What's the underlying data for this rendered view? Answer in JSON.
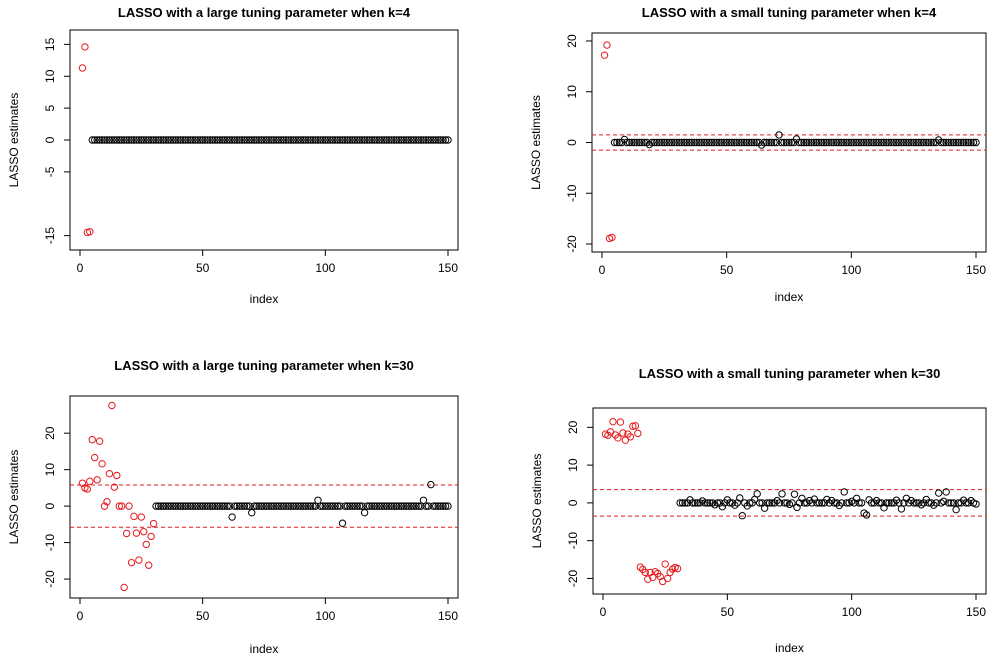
{
  "colors": {
    "selected": "#e41a1c",
    "rest": "#000000",
    "refline": "#e41a1c"
  },
  "chart_data": [
    {
      "type": "scatter",
      "title": "LASSO with a large tuning parameter when k=4",
      "xlabel": "index",
      "ylabel": "LASSO estimates",
      "xlim": [
        0,
        150
      ],
      "ylim": [
        -16,
        16
      ],
      "xticks": [
        "0",
        "50",
        "100",
        "150"
      ],
      "yticks": [
        "-15",
        "-5",
        "0",
        "5",
        "10",
        "15"
      ],
      "grid": false,
      "refline": null,
      "highlighted": {
        "x": [
          1,
          2,
          3,
          4
        ],
        "y": [
          11.3,
          14.6,
          -14.5,
          -14.4
        ]
      },
      "rest_value": 0,
      "rest_x_range": [
        5,
        150
      ],
      "outliers": {
        "x": [],
        "y": []
      }
    },
    {
      "type": "scatter",
      "title": "LASSO with a small tuning parameter when k=4",
      "xlabel": "index",
      "ylabel": "LASSO estimates",
      "xlim": [
        0,
        150
      ],
      "ylim": [
        -20,
        20
      ],
      "xticks": [
        "0",
        "50",
        "100",
        "150"
      ],
      "yticks": [
        "-20",
        "-10",
        "0",
        "10",
        "20"
      ],
      "grid": false,
      "refline": 1.5,
      "highlighted": {
        "x": [
          1,
          2,
          3,
          4
        ],
        "y": [
          17.2,
          19.2,
          -18.9,
          -18.7
        ]
      },
      "rest_value": 0,
      "rest_x_range": [
        5,
        150
      ],
      "outliers": {
        "x": [
          9,
          19,
          64,
          71,
          78,
          135
        ],
        "y": [
          0.6,
          -0.4,
          -0.5,
          1.5,
          0.7,
          0.5
        ]
      }
    },
    {
      "type": "scatter",
      "title": "LASSO with a large tuning parameter when k=30",
      "xlabel": "index",
      "ylabel": "LASSO estimates",
      "xlim": [
        0,
        150
      ],
      "ylim": [
        -23,
        28
      ],
      "xticks": [
        "0",
        "50",
        "100",
        "150"
      ],
      "yticks": [
        "-20",
        "-10",
        "0",
        "10",
        "20"
      ],
      "grid": false,
      "refline": 5.8,
      "highlighted": {
        "x": [
          1,
          2,
          3,
          4,
          5,
          6,
          7,
          8,
          9,
          10,
          11,
          12,
          13,
          14,
          15,
          16,
          17,
          18,
          19,
          20,
          21,
          22,
          23,
          24,
          25,
          26,
          27,
          28,
          29,
          30
        ],
        "y": [
          6.3,
          5.0,
          4.7,
          6.8,
          18.2,
          13.3,
          7.2,
          17.8,
          11.6,
          0.0,
          1.2,
          8.9,
          27.6,
          5.2,
          8.4,
          0.0,
          0.0,
          -22.3,
          -7.5,
          0.0,
          -15.5,
          -2.8,
          -7.4,
          -14.8,
          -3.0,
          -7.0,
          -10.5,
          -16.2,
          -8.3,
          -4.8
        ]
      },
      "rest_value": 0,
      "rest_x_range": [
        31,
        150
      ],
      "outliers": {
        "x": [
          62,
          70,
          97,
          107,
          116,
          140,
          143
        ],
        "y": [
          -3.0,
          -1.8,
          1.6,
          -4.7,
          -1.8,
          1.6,
          5.9
        ]
      }
    },
    {
      "type": "scatter",
      "title": "LASSO with a small tuning parameter when k=30",
      "xlabel": "index",
      "ylabel": "LASSO estimates",
      "xlim": [
        0,
        150
      ],
      "ylim": [
        -22,
        23
      ],
      "xticks": [
        "0",
        "50",
        "100",
        "150"
      ],
      "yticks": [
        "-20",
        "-10",
        "0",
        "10",
        "20"
      ],
      "grid": false,
      "refline": 3.5,
      "highlighted": {
        "x": [
          1,
          2,
          3,
          4,
          5,
          6,
          7,
          8,
          9,
          10,
          11,
          12,
          13,
          14,
          15,
          16,
          17,
          18,
          19,
          20,
          21,
          22,
          23,
          24,
          25,
          26,
          27,
          28,
          29,
          30
        ],
        "y": [
          18.2,
          17.9,
          18.8,
          21.5,
          18.0,
          17.2,
          21.4,
          18.5,
          16.6,
          18.2,
          17.5,
          20.3,
          20.4,
          18.4,
          -17.0,
          -17.6,
          -18.4,
          -20.2,
          -18.4,
          -19.7,
          -18.2,
          -18.7,
          -19.5,
          -20.8,
          -16.2,
          -20.0,
          -18.4,
          -17.5,
          -17.1,
          -17.4
        ]
      },
      "rest_value": 0,
      "rest_x_range": [
        31,
        150
      ],
      "outliers": {
        "x": [
          35,
          40,
          45,
          48,
          50,
          53,
          55,
          56,
          58,
          61,
          62,
          65,
          70,
          72,
          75,
          77,
          78,
          80,
          83,
          85,
          90,
          92,
          95,
          97,
          100,
          102,
          105,
          106,
          107,
          110,
          113,
          118,
          120,
          122,
          124,
          128,
          130,
          133,
          135,
          137,
          138,
          142,
          145,
          148,
          150
        ],
        "y": [
          0.8,
          0.5,
          -0.5,
          -1.0,
          0.8,
          -0.6,
          1.3,
          -3.4,
          -0.8,
          0.9,
          2.4,
          -1.4,
          0.6,
          2.4,
          -0.4,
          2.3,
          -1.2,
          1.2,
          0.6,
          1.0,
          0.9,
          0.6,
          -0.7,
          2.9,
          0.4,
          1.2,
          -2.7,
          -3.2,
          0.8,
          0.6,
          -1.3,
          0.7,
          -1.6,
          1.2,
          0.6,
          -0.5,
          0.9,
          -0.6,
          2.6,
          0.4,
          2.9,
          -1.8,
          0.7,
          0.6,
          -0.3
        ]
      }
    }
  ]
}
